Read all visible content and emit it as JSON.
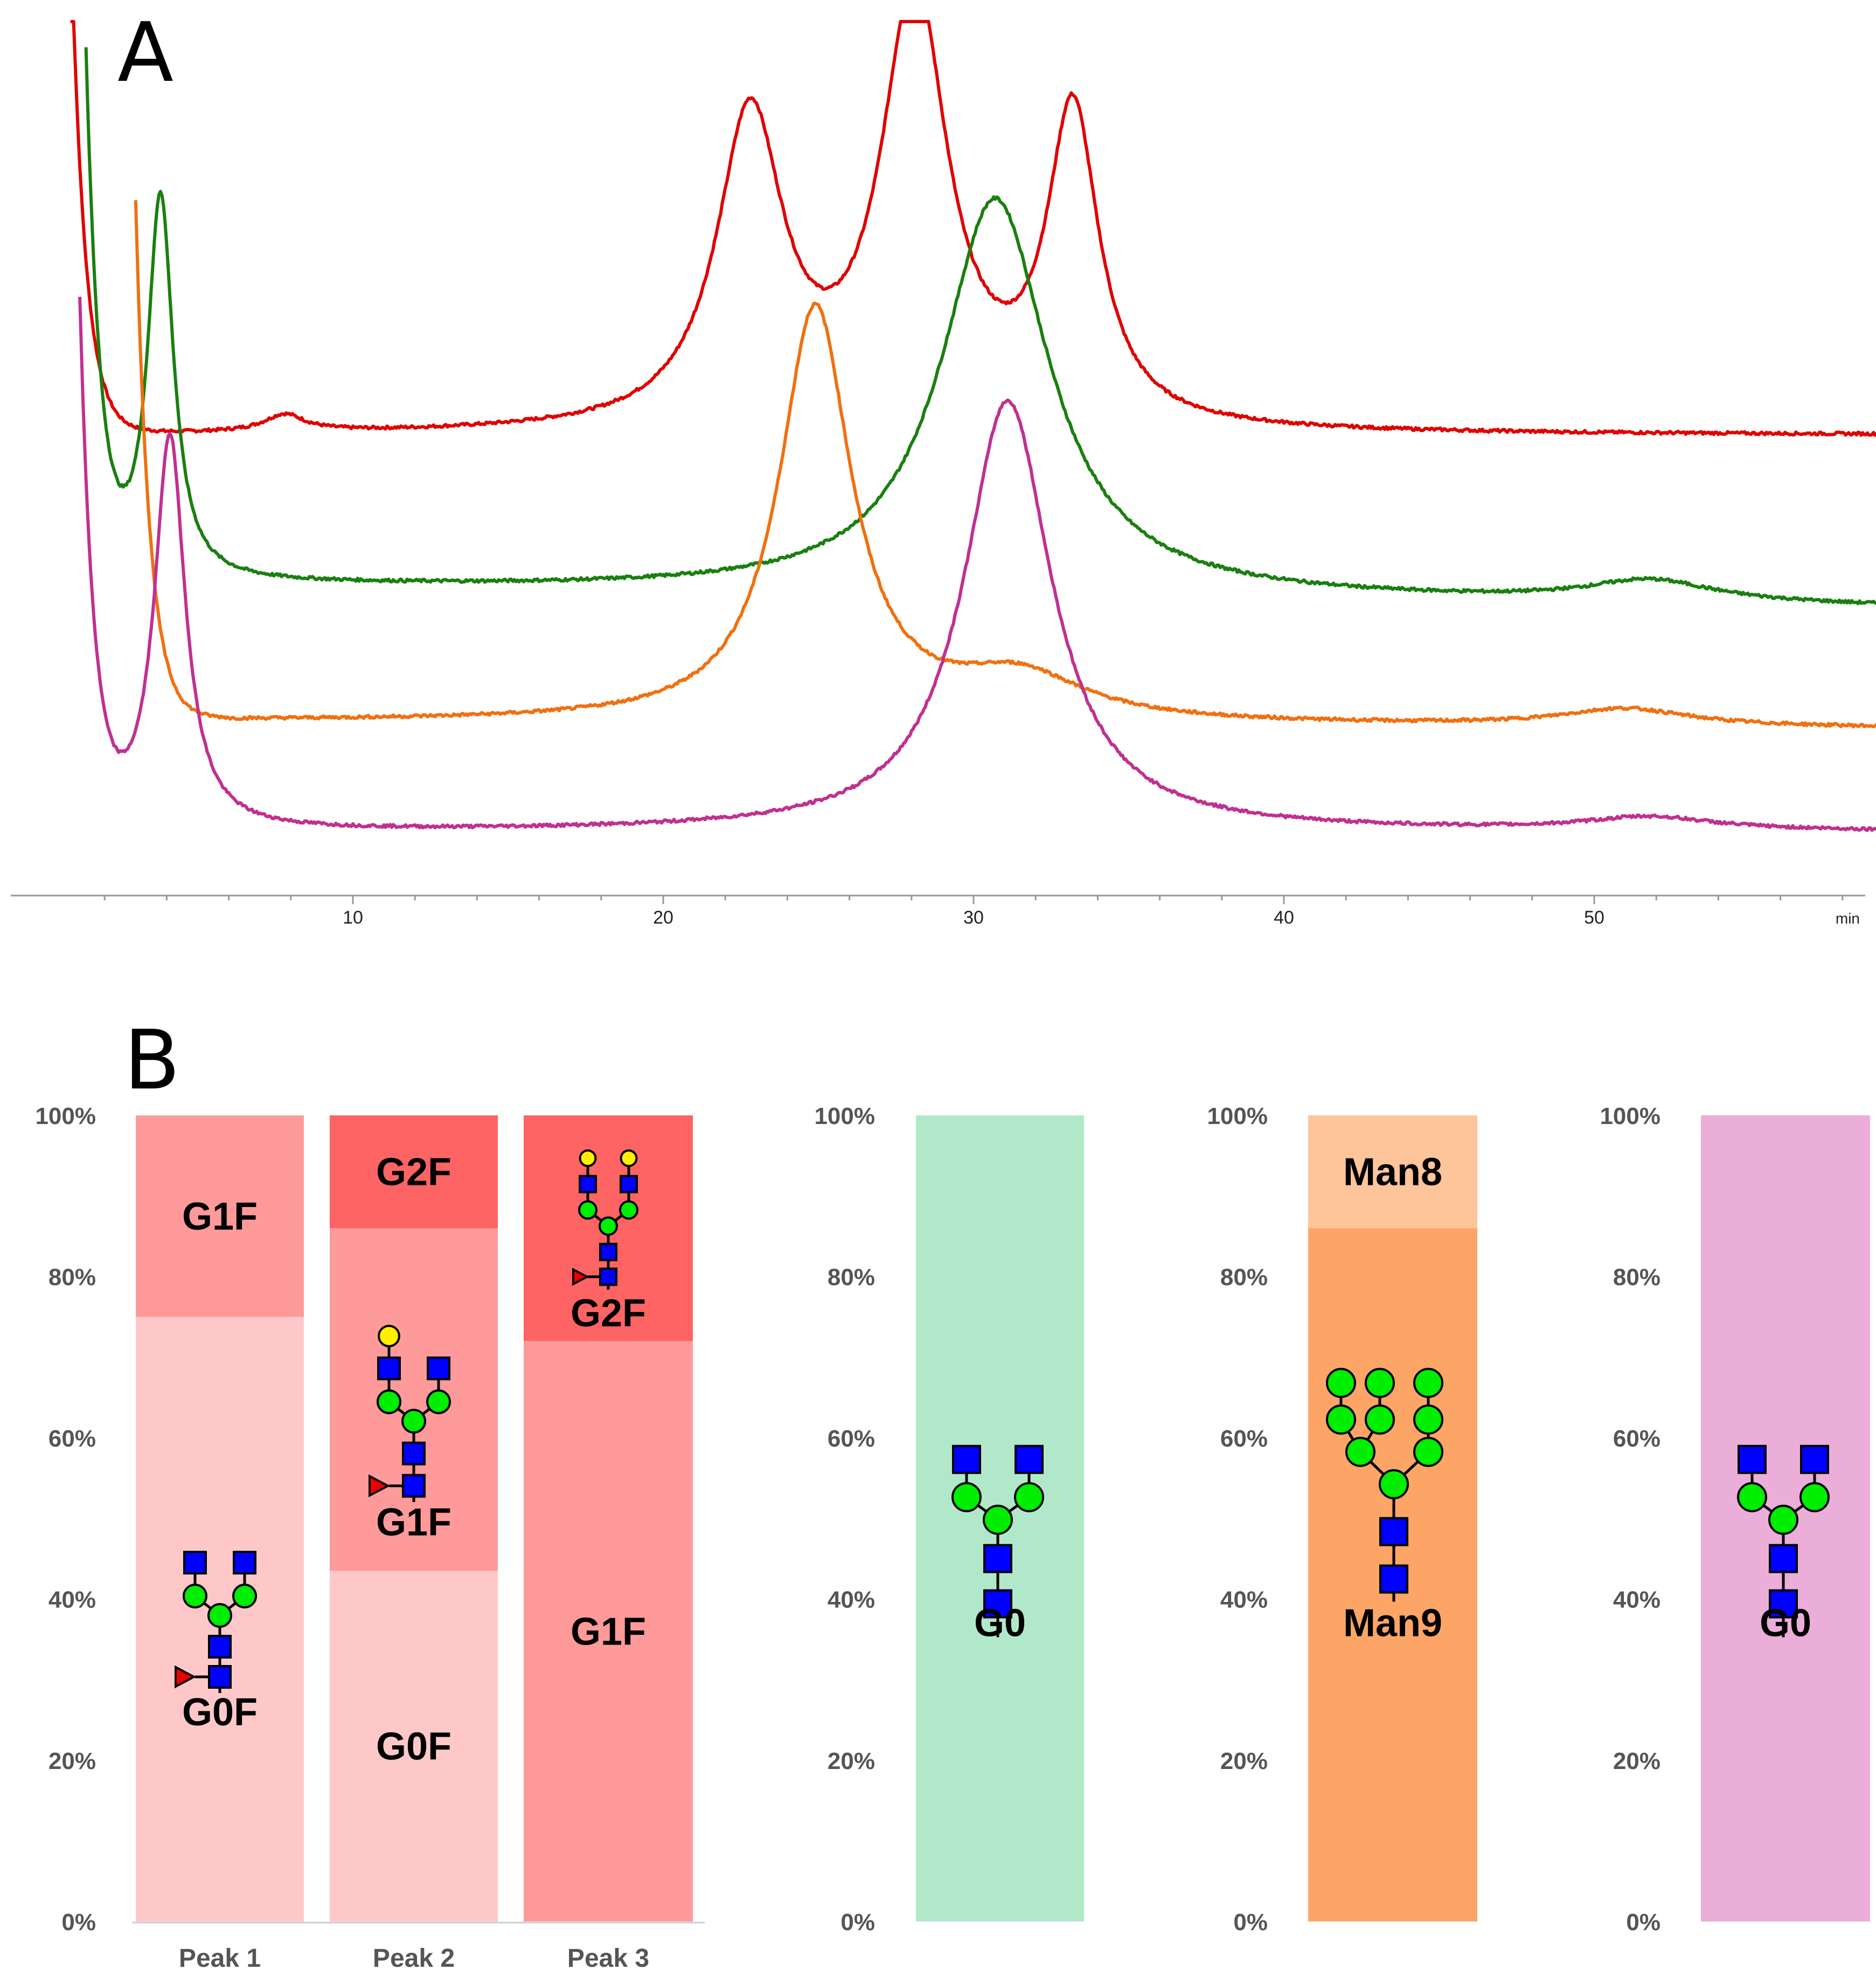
{
  "panel_a_label": "A",
  "panel_b_label": "B",
  "chart_data": [
    {
      "type": "line",
      "panel": "A",
      "title": "",
      "xlabel": "min",
      "ylabel": "",
      "xlim": [
        0,
        60
      ],
      "ylim": [
        0,
        100
      ],
      "grid": false,
      "xticks": [
        "10",
        "20",
        "30",
        "40",
        "50"
      ],
      "series": [
        {
          "name": "red trace",
          "color": "#E00000",
          "baseline": 52,
          "peaks": [
            {
              "x": 7.8,
              "h": 2,
              "w": 0.8
            },
            {
              "x": 22.8,
              "h": 36,
              "w": 1.3
            },
            {
              "x": 28.1,
              "h": 50,
              "w": 1.3
            },
            {
              "x": 33.2,
              "h": 36,
              "w": 1.0
            }
          ],
          "end": 52
        },
        {
          "name": "green trace",
          "color": "#1A7F10",
          "baseline": 35,
          "peaks": [
            {
              "x": 3.8,
              "h": 45,
              "w": 0.5
            },
            {
              "x": 30.7,
              "h": 46,
              "w": 2.1
            },
            {
              "x": 51.8,
              "h": 2.5,
              "w": 2.5
            }
          ],
          "end": 32
        },
        {
          "name": "orange trace",
          "color": "#F07010",
          "baseline": 19,
          "peaks": [
            {
              "x": 24.9,
              "h": 48,
              "w": 1.4
            },
            {
              "x": 31.5,
              "h": 5,
              "w": 2.5
            },
            {
              "x": 51,
              "h": 2,
              "w": 2.5
            }
          ],
          "end": 18
        },
        {
          "name": "magenta trace",
          "color": "#C03090",
          "baseline": 6,
          "peaks": [
            {
              "x": 4.1,
              "h": 46,
              "w": 0.6
            },
            {
              "x": 31.1,
              "h": 50,
              "w": 1.7
            },
            {
              "x": 51.8,
              "h": 1.5,
              "w": 2.5
            }
          ],
          "end": 6
        }
      ]
    },
    {
      "type": "bar",
      "panel": "B",
      "stacked": true,
      "ylim": [
        0,
        100
      ],
      "yticks": [
        "0%",
        "20%",
        "40%",
        "60%",
        "80%",
        "100%"
      ],
      "categories": [
        "Peak 1",
        "Peak 2",
        "Peak 3"
      ],
      "bars": [
        {
          "category": "Peak 1",
          "segments": [
            {
              "label": "G0F",
              "value": 75,
              "color": "#FFC8C8",
              "glycan": "G0F"
            },
            {
              "label": "G1F",
              "value": 25,
              "color": "#FF9A9A",
              "glycan": ""
            }
          ]
        },
        {
          "category": "Peak 2",
          "segments": [
            {
              "label": "G0F",
              "value": 43.5,
              "color": "#FFC8C8",
              "glycan": ""
            },
            {
              "label": "G1F",
              "value": 42.5,
              "color": "#FF9A9A",
              "glycan": "G1F"
            },
            {
              "label": "G2F",
              "value": 14,
              "color": "#FF6464",
              "glycan": ""
            }
          ]
        },
        {
          "category": "Peak 3",
          "segments": [
            {
              "label": "G1F",
              "value": 72,
              "color": "#FF9A9A",
              "glycan": ""
            },
            {
              "label": "G2F",
              "value": 28,
              "color": "#FF6464",
              "glycan": "G2F"
            }
          ]
        }
      ]
    },
    {
      "type": "bar",
      "panel": "B",
      "stacked": true,
      "ylim": [
        0,
        100
      ],
      "yticks": [
        "0%",
        "20%",
        "40%",
        "60%",
        "80%",
        "100%"
      ],
      "categories": [
        ""
      ],
      "bars": [
        {
          "category": "",
          "segments": [
            {
              "label": "G0",
              "value": 100,
              "color": "#B2E8CA",
              "glycan": "G0"
            }
          ]
        }
      ]
    },
    {
      "type": "bar",
      "panel": "B",
      "stacked": true,
      "ylim": [
        0,
        100
      ],
      "yticks": [
        "0%",
        "20%",
        "40%",
        "60%",
        "80%",
        "100%"
      ],
      "categories": [
        ""
      ],
      "bars": [
        {
          "category": "",
          "segments": [
            {
              "label": "Man9",
              "value": 86,
              "color": "#FDA566",
              "glycan": "Man9"
            },
            {
              "label": "Man8",
              "value": 14,
              "color": "#FEC49A",
              "glycan": ""
            }
          ]
        }
      ]
    },
    {
      "type": "bar",
      "panel": "B",
      "stacked": true,
      "ylim": [
        0,
        100
      ],
      "yticks": [
        "0%",
        "20%",
        "40%",
        "60%",
        "80%",
        "100%"
      ],
      "categories": [
        ""
      ],
      "bars": [
        {
          "category": "",
          "segments": [
            {
              "label": "G0",
              "value": 100,
              "color": "#EBAED8",
              "glycan": "G0"
            }
          ]
        }
      ]
    }
  ]
}
